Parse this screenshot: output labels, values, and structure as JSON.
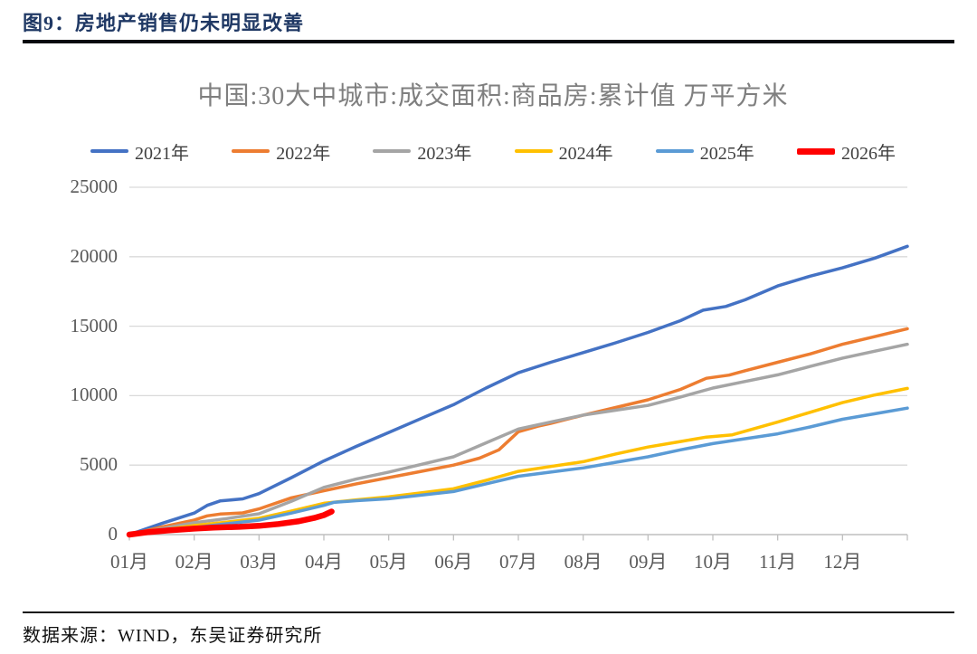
{
  "header": {
    "title": "图9：房地产销售仍未明显改善"
  },
  "source": {
    "text": "数据来源：WIND，东吴证券研究所"
  },
  "colors": {
    "header_navy": "#1F3864",
    "chart_title_gray": "#7F7F7F",
    "tick_label_gray": "#595959",
    "legend_label_gray": "#404040",
    "gridline": "#D9D9D9",
    "axis_line": "#BFBFBF"
  },
  "chart_data": {
    "type": "line",
    "title": "中国:30大中城市:成交面积:商品房:累计值 万平方米",
    "ylabel": "",
    "xlabel": "",
    "ylim": [
      0,
      25000
    ],
    "y_ticks": [
      0,
      5000,
      10000,
      15000,
      20000,
      25000
    ],
    "x_tick_labels": [
      "01月",
      "02月",
      "03月",
      "04月",
      "05月",
      "06月",
      "07月",
      "08月",
      "09月",
      "10月",
      "11月",
      "12月"
    ],
    "x_unit": "month (t=1 is Jan-01, t=13 is Dec-31)",
    "grid": "horizontal",
    "legend_position": "top",
    "series": [
      {
        "name": "2021年",
        "color": "#4472C4",
        "width": 3.5,
        "points": [
          [
            1,
            0
          ],
          [
            1.5,
            800
          ],
          [
            2,
            1550
          ],
          [
            2.2,
            2100
          ],
          [
            2.4,
            2420
          ],
          [
            2.75,
            2570
          ],
          [
            3,
            2950
          ],
          [
            3.5,
            4100
          ],
          [
            4,
            5300
          ],
          [
            4.5,
            6350
          ],
          [
            5,
            7350
          ],
          [
            5.5,
            8350
          ],
          [
            6,
            9350
          ],
          [
            6.5,
            10550
          ],
          [
            7,
            11650
          ],
          [
            7.5,
            12400
          ],
          [
            8,
            13100
          ],
          [
            8.5,
            13800
          ],
          [
            9,
            14550
          ],
          [
            9.5,
            15400
          ],
          [
            9.85,
            16150
          ],
          [
            10.2,
            16420
          ],
          [
            10.5,
            16900
          ],
          [
            11,
            17900
          ],
          [
            11.5,
            18600
          ],
          [
            12,
            19200
          ],
          [
            12.5,
            19900
          ],
          [
            13,
            20750
          ]
        ]
      },
      {
        "name": "2022年",
        "color": "#ED7D31",
        "width": 3.5,
        "points": [
          [
            1,
            0
          ],
          [
            1.5,
            550
          ],
          [
            2,
            1050
          ],
          [
            2.2,
            1350
          ],
          [
            2.4,
            1480
          ],
          [
            2.75,
            1560
          ],
          [
            3,
            1850
          ],
          [
            3.5,
            2650
          ],
          [
            4,
            3150
          ],
          [
            4.5,
            3650
          ],
          [
            5,
            4100
          ],
          [
            5.5,
            4550
          ],
          [
            6,
            5000
          ],
          [
            6.4,
            5500
          ],
          [
            6.7,
            6100
          ],
          [
            7,
            7400
          ],
          [
            7.3,
            7800
          ],
          [
            7.5,
            8000
          ],
          [
            8,
            8600
          ],
          [
            8.5,
            9150
          ],
          [
            9,
            9700
          ],
          [
            9.5,
            10450
          ],
          [
            9.9,
            11250
          ],
          [
            10.25,
            11480
          ],
          [
            10.5,
            11800
          ],
          [
            11,
            12400
          ],
          [
            11.5,
            13000
          ],
          [
            12,
            13700
          ],
          [
            12.5,
            14250
          ],
          [
            13,
            14820
          ]
        ]
      },
      {
        "name": "2023年",
        "color": "#A5A5A5",
        "width": 3.5,
        "points": [
          [
            1,
            0
          ],
          [
            1.5,
            420
          ],
          [
            2,
            850
          ],
          [
            2.5,
            1150
          ],
          [
            3,
            1500
          ],
          [
            3.5,
            2400
          ],
          [
            4,
            3400
          ],
          [
            4.5,
            4000
          ],
          [
            5,
            4500
          ],
          [
            5.5,
            5050
          ],
          [
            6,
            5600
          ],
          [
            6.5,
            6600
          ],
          [
            7,
            7600
          ],
          [
            7.5,
            8100
          ],
          [
            8,
            8600
          ],
          [
            8.5,
            8950
          ],
          [
            9,
            9300
          ],
          [
            9.5,
            9900
          ],
          [
            10,
            10550
          ],
          [
            10.5,
            11020
          ],
          [
            11,
            11500
          ],
          [
            11.5,
            12100
          ],
          [
            12,
            12700
          ],
          [
            12.5,
            13200
          ],
          [
            13,
            13700
          ]
        ]
      },
      {
        "name": "2024年",
        "color": "#FFC000",
        "width": 3.5,
        "points": [
          [
            1,
            0
          ],
          [
            1.5,
            330
          ],
          [
            2,
            650
          ],
          [
            2.5,
            900
          ],
          [
            3,
            1170
          ],
          [
            3.5,
            1700
          ],
          [
            4,
            2250
          ],
          [
            4.5,
            2500
          ],
          [
            5,
            2720
          ],
          [
            5.5,
            3000
          ],
          [
            6,
            3300
          ],
          [
            6.5,
            3900
          ],
          [
            7,
            4550
          ],
          [
            7.5,
            4900
          ],
          [
            8,
            5250
          ],
          [
            8.5,
            5800
          ],
          [
            9,
            6300
          ],
          [
            9.5,
            6700
          ],
          [
            9.9,
            7020
          ],
          [
            10.3,
            7180
          ],
          [
            11,
            8100
          ],
          [
            11.5,
            8800
          ],
          [
            12,
            9500
          ],
          [
            12.5,
            10050
          ],
          [
            13,
            10520
          ]
        ]
      },
      {
        "name": "2025年",
        "color": "#5B9BD5",
        "width": 3.5,
        "points": [
          [
            1,
            0
          ],
          [
            1.5,
            260
          ],
          [
            2,
            500
          ],
          [
            2.5,
            780
          ],
          [
            3,
            1040
          ],
          [
            3.5,
            1550
          ],
          [
            4,
            2100
          ],
          [
            4.15,
            2320
          ],
          [
            4.5,
            2440
          ],
          [
            5,
            2580
          ],
          [
            5.5,
            2840
          ],
          [
            6,
            3100
          ],
          [
            6.5,
            3650
          ],
          [
            7,
            4200
          ],
          [
            7.5,
            4500
          ],
          [
            8,
            4800
          ],
          [
            8.5,
            5200
          ],
          [
            9,
            5600
          ],
          [
            9.5,
            6100
          ],
          [
            10,
            6550
          ],
          [
            10.5,
            6900
          ],
          [
            11,
            7250
          ],
          [
            11.5,
            7750
          ],
          [
            12,
            8300
          ],
          [
            12.5,
            8700
          ],
          [
            13,
            9100
          ]
        ]
      },
      {
        "name": "2026年",
        "color": "#FF0000",
        "width": 6.5,
        "points": [
          [
            1,
            0
          ],
          [
            1.3,
            180
          ],
          [
            1.6,
            300
          ],
          [
            2,
            430
          ],
          [
            2.3,
            510
          ],
          [
            2.7,
            560
          ],
          [
            3,
            630
          ],
          [
            3.3,
            760
          ],
          [
            3.6,
            950
          ],
          [
            3.85,
            1200
          ],
          [
            4,
            1400
          ],
          [
            4.12,
            1660
          ]
        ]
      }
    ]
  }
}
